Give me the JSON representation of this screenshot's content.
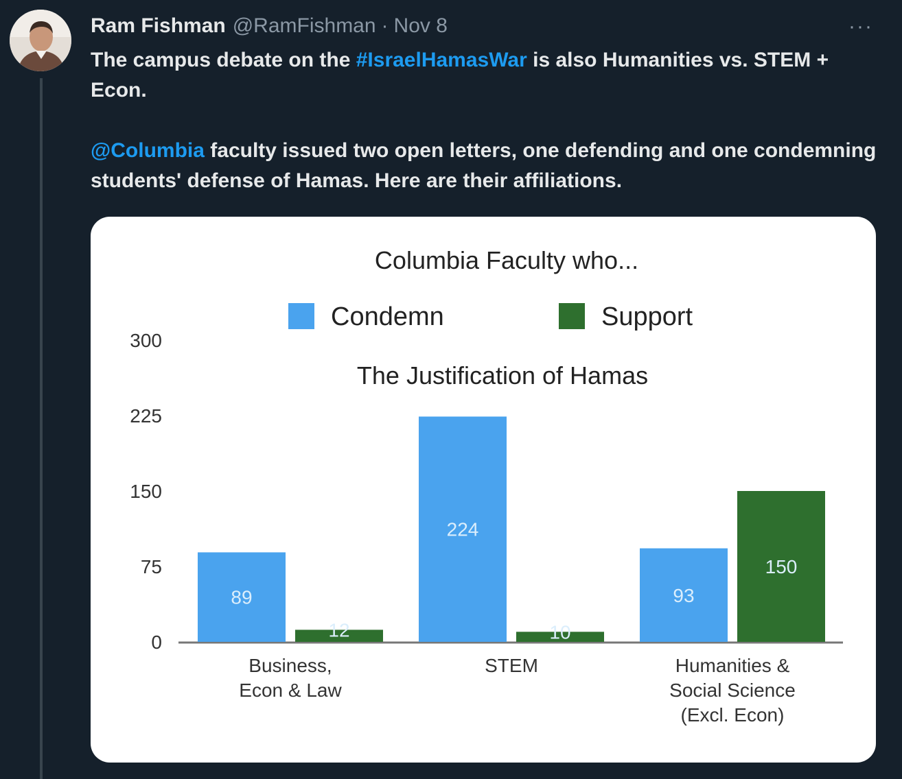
{
  "tweet": {
    "author_name": "Ram Fishman",
    "author_handle": "@RamFishman",
    "separator": "·",
    "date": "Nov 8",
    "more_label": "···",
    "text": {
      "p1_before": "The campus debate on the ",
      "hashtag": "#IsraelHamasWar",
      "p1_after": " is also  Humanities vs. STEM + Econ.",
      "mention": "@Columbia",
      "p2_after": " faculty issued two open letters, one defending and one condemning students' defense of Hamas. Here are their affiliations."
    }
  },
  "colors": {
    "condemn": "#4aa3ee",
    "support": "#2e6f2e",
    "link": "#1d9bf0"
  },
  "chart_data": {
    "type": "bar",
    "title": "Columbia Faculty who...",
    "subtitle": "The Justification of Hamas",
    "categories": [
      [
        "Business,",
        "Econ & Law"
      ],
      [
        "STEM"
      ],
      [
        "Humanities &",
        "Social Science",
        "(Excl. Econ)"
      ]
    ],
    "series": [
      {
        "name": "Condemn",
        "color": "#4aa3ee",
        "values": [
          89,
          224,
          93
        ],
        "labels": [
          "89",
          "224",
          "93"
        ]
      },
      {
        "name": "Support",
        "color": "#2e6f2e",
        "values": [
          12,
          10,
          150
        ],
        "labels": [
          "12",
          "10",
          "150"
        ]
      }
    ],
    "y_ticks": [
      0,
      75,
      150,
      225,
      300
    ],
    "ylim": [
      0,
      300
    ],
    "legend_position": "top",
    "grid": false
  }
}
